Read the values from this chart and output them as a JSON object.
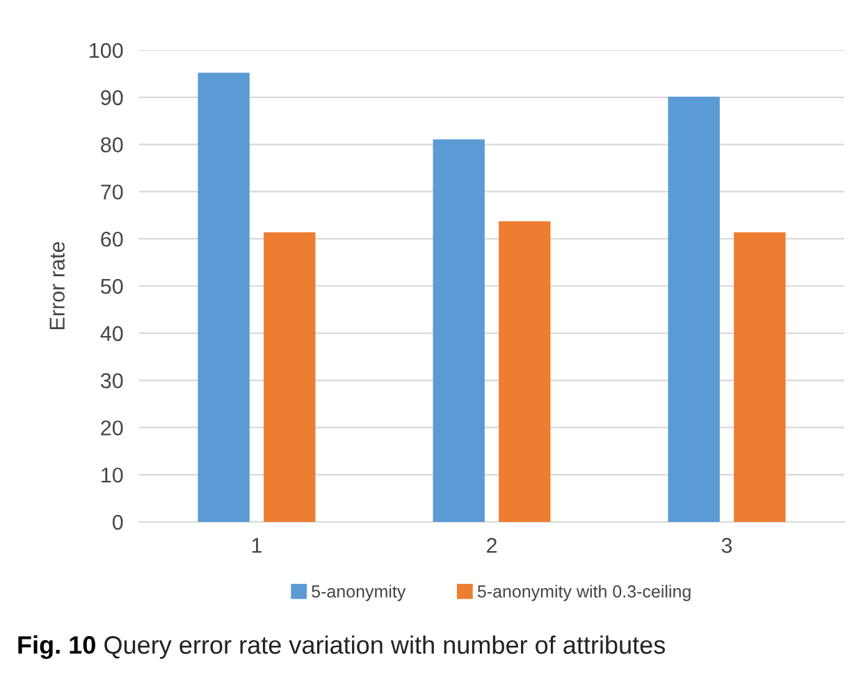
{
  "chart_data": {
    "type": "bar",
    "ylabel": "Error rate",
    "categories": [
      "1",
      "2",
      "3"
    ],
    "series": [
      {
        "name": "5-anonymity",
        "color": "#5b9bd5",
        "values": [
          95.2,
          81.1,
          90.1
        ]
      },
      {
        "name": "5-anonymity with 0.3-ceiling",
        "color": "#ed7d31",
        "values": [
          61.4,
          63.7,
          61.4
        ]
      }
    ],
    "ylim": [
      0,
      100
    ],
    "yticks": [
      0,
      10,
      20,
      30,
      40,
      50,
      60,
      70,
      80,
      90,
      100
    ],
    "grid": "y",
    "legend": "bottom",
    "annotations": [
      "Fig. 10",
      "Query error rate variation with number of attributes"
    ]
  }
}
